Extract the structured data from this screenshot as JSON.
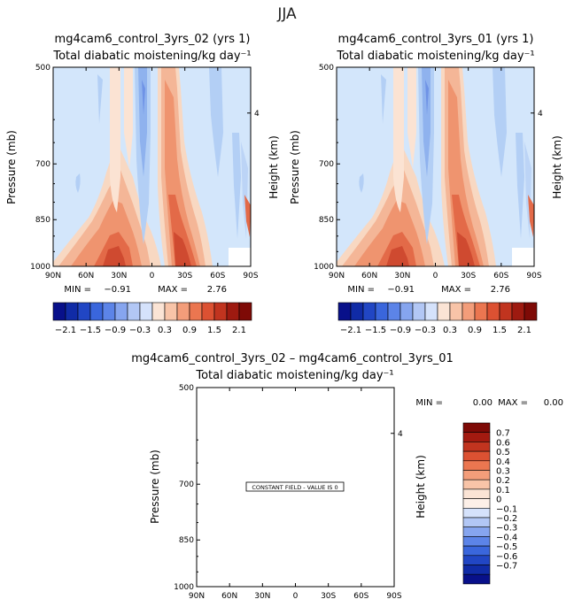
{
  "figure": {
    "season": "JJA",
    "diff_title": "mg4cam6_control_3yrs_02 – mg4cam6_control_3yrs_01",
    "constant_note": "CONSTANT FIELD - VALUE IS 0"
  },
  "chart_data": [
    {
      "type": "heatmap",
      "title": "mg4cam6_control_3yrs_02 (yrs 1)",
      "subtitle": "Total diabatic moistening/kg day⁻¹",
      "ylabel": "Pressure (mb)",
      "ylabel_right": "Height (km)",
      "xticks": [
        "90N",
        "60N",
        "30N",
        "0",
        "30S",
        "60S",
        "90S"
      ],
      "yticks": [
        "500",
        "700",
        "850",
        "1000"
      ],
      "yticks_right": [
        "4"
      ],
      "ylim": [
        1000,
        500
      ],
      "min_label": "MIN =",
      "min_value": "−0.91",
      "max_label": "MAX =",
      "max_value": "2.76",
      "colorbar_labels": [
        "−2.1",
        "−1.5",
        "−0.9",
        "−0.3",
        "0.3",
        "0.9",
        "1.5",
        "2.1"
      ]
    },
    {
      "type": "heatmap",
      "title": "mg4cam6_control_3yrs_01 (yrs 1)",
      "subtitle": "Total diabatic moistening/kg day⁻¹",
      "ylabel": "Pressure (mb)",
      "ylabel_right": "Height (km)",
      "xticks": [
        "90N",
        "60N",
        "30N",
        "0",
        "30S",
        "60S",
        "90S"
      ],
      "yticks": [
        "500",
        "700",
        "850",
        "1000"
      ],
      "yticks_right": [
        "4"
      ],
      "ylim": [
        1000,
        500
      ],
      "min_label": "MIN =",
      "min_value": "−0.91",
      "max_label": "MAX =",
      "max_value": "2.76",
      "colorbar_labels": [
        "−2.1",
        "−1.5",
        "−0.9",
        "−0.3",
        "0.3",
        "0.9",
        "1.5",
        "2.1"
      ]
    },
    {
      "type": "heatmap",
      "title": "",
      "subtitle": "Total diabatic moistening/kg day⁻¹",
      "ylabel": "Pressure (mb)",
      "ylabel_right": "Height (km)",
      "xticks": [
        "90N",
        "60N",
        "30N",
        "0",
        "30S",
        "60S",
        "90S"
      ],
      "yticks": [
        "500",
        "700",
        "850",
        "1000"
      ],
      "yticks_right": [
        "4"
      ],
      "ylim": [
        1000,
        500
      ],
      "min_label": "MIN =",
      "min_value": "0.00",
      "max_label": "MAX =",
      "max_value": "0.00",
      "colorbar_labels": [
        "0.7",
        "0.6",
        "0.5",
        "0.4",
        "0.3",
        "0.2",
        "0.1",
        "0",
        "−0.1",
        "−0.2",
        "−0.3",
        "−0.4",
        "−0.5",
        "−0.6",
        "−0.7"
      ]
    }
  ]
}
